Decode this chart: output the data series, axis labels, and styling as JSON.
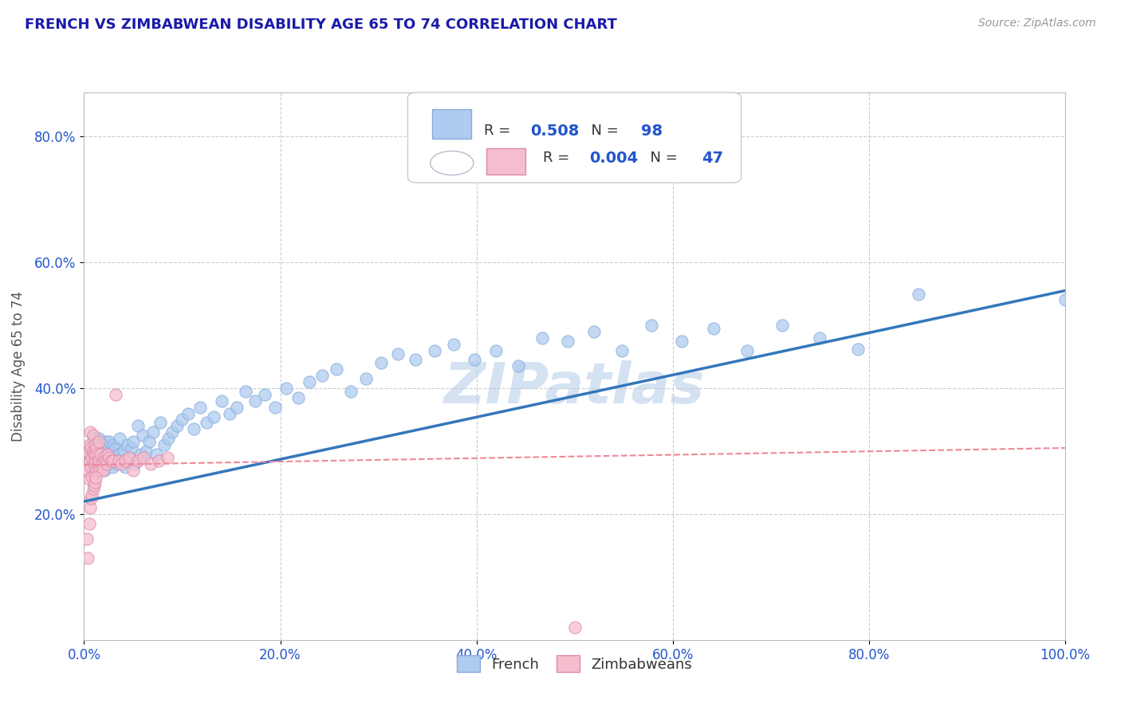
{
  "title": "FRENCH VS ZIMBABWEAN DISABILITY AGE 65 TO 74 CORRELATION CHART",
  "source_text": "Source: ZipAtlas.com",
  "xlabel": "",
  "ylabel": "Disability Age 65 to 74",
  "legend_french_label": "French",
  "legend_zimbabweans_label": "Zimbabweans",
  "french_R": "0.508",
  "french_N": "98",
  "zim_R": "0.004",
  "zim_N": "47",
  "title_color": "#1a1aaa",
  "axis_label_color": "#555555",
  "watermark_text": "ZIPatlas",
  "watermark_color": "#b8d0e8",
  "french_color": "#aeccf0",
  "french_edge_color": "#88aadd",
  "zim_color": "#f5bece",
  "zim_edge_color": "#dd88aa",
  "french_line_color": "#3377bb",
  "zim_line_color": "#ee8899",
  "legend_box_color": "#aeccf0",
  "legend_zim_box_color": "#f5bece",
  "legend_N_color": "#2255cc",
  "xlim": [
    0.0,
    1.0
  ],
  "ylim": [
    0.0,
    0.87
  ],
  "xtick_labels": [
    "0.0%",
    "20.0%",
    "40.0%",
    "60.0%",
    "80.0%",
    "100.0%"
  ],
  "ytick_labels": [
    "20.0%",
    "40.0%",
    "60.0%",
    "80.0%"
  ],
  "xtick_values": [
    0.0,
    0.2,
    0.4,
    0.6,
    0.8,
    1.0
  ],
  "ytick_values": [
    0.2,
    0.4,
    0.6,
    0.8
  ],
  "french_scatter_x": [
    0.005,
    0.007,
    0.008,
    0.009,
    0.01,
    0.01,
    0.011,
    0.012,
    0.012,
    0.013,
    0.013,
    0.014,
    0.015,
    0.015,
    0.016,
    0.017,
    0.018,
    0.018,
    0.019,
    0.02,
    0.02,
    0.021,
    0.022,
    0.022,
    0.023,
    0.024,
    0.025,
    0.026,
    0.027,
    0.028,
    0.029,
    0.03,
    0.031,
    0.032,
    0.034,
    0.035,
    0.036,
    0.038,
    0.04,
    0.042,
    0.044,
    0.046,
    0.048,
    0.05,
    0.052,
    0.055,
    0.058,
    0.06,
    0.063,
    0.066,
    0.07,
    0.074,
    0.078,
    0.082,
    0.086,
    0.09,
    0.095,
    0.1,
    0.106,
    0.112,
    0.118,
    0.125,
    0.132,
    0.14,
    0.148,
    0.156,
    0.165,
    0.174,
    0.184,
    0.195,
    0.206,
    0.218,
    0.23,
    0.243,
    0.257,
    0.272,
    0.287,
    0.303,
    0.32,
    0.338,
    0.357,
    0.377,
    0.398,
    0.42,
    0.443,
    0.467,
    0.493,
    0.52,
    0.548,
    0.578,
    0.609,
    0.642,
    0.676,
    0.712,
    0.75,
    0.789,
    0.851,
    1.0
  ],
  "french_scatter_y": [
    0.295,
    0.31,
    0.275,
    0.295,
    0.28,
    0.32,
    0.265,
    0.31,
    0.29,
    0.275,
    0.305,
    0.285,
    0.295,
    0.32,
    0.28,
    0.3,
    0.29,
    0.275,
    0.31,
    0.285,
    0.3,
    0.27,
    0.315,
    0.29,
    0.305,
    0.28,
    0.295,
    0.315,
    0.285,
    0.3,
    0.275,
    0.31,
    0.29,
    0.305,
    0.28,
    0.295,
    0.32,
    0.285,
    0.3,
    0.275,
    0.31,
    0.29,
    0.305,
    0.315,
    0.28,
    0.34,
    0.295,
    0.325,
    0.3,
    0.315,
    0.33,
    0.295,
    0.345,
    0.31,
    0.32,
    0.33,
    0.34,
    0.35,
    0.36,
    0.335,
    0.37,
    0.345,
    0.355,
    0.38,
    0.36,
    0.37,
    0.395,
    0.38,
    0.39,
    0.37,
    0.4,
    0.385,
    0.41,
    0.42,
    0.43,
    0.395,
    0.415,
    0.44,
    0.455,
    0.445,
    0.46,
    0.47,
    0.445,
    0.46,
    0.435,
    0.48,
    0.475,
    0.49,
    0.46,
    0.5,
    0.475,
    0.495,
    0.46,
    0.5,
    0.48,
    0.462,
    0.55,
    0.54
  ],
  "zim_scatter_x": [
    0.003,
    0.004,
    0.005,
    0.005,
    0.006,
    0.006,
    0.007,
    0.007,
    0.008,
    0.008,
    0.009,
    0.009,
    0.01,
    0.01,
    0.011,
    0.011,
    0.012,
    0.012,
    0.013,
    0.013,
    0.014,
    0.014,
    0.015,
    0.015,
    0.016,
    0.017,
    0.018,
    0.019,
    0.02,
    0.021,
    0.022,
    0.023,
    0.024,
    0.026,
    0.028,
    0.03,
    0.032,
    0.035,
    0.038,
    0.042,
    0.046,
    0.05,
    0.055,
    0.061,
    0.068,
    0.076,
    0.085
  ],
  "zim_scatter_y": [
    0.3,
    0.27,
    0.255,
    0.31,
    0.285,
    0.33,
    0.275,
    0.305,
    0.29,
    0.26,
    0.3,
    0.325,
    0.28,
    0.295,
    0.265,
    0.31,
    0.285,
    0.295,
    0.27,
    0.305,
    0.28,
    0.295,
    0.285,
    0.315,
    0.27,
    0.295,
    0.28,
    0.27,
    0.29,
    0.285,
    0.285,
    0.28,
    0.295,
    0.29,
    0.285,
    0.285,
    0.39,
    0.285,
    0.28,
    0.285,
    0.29,
    0.27,
    0.285,
    0.29,
    0.28,
    0.285,
    0.29
  ],
  "zim_extra_y": [
    0.16,
    0.13,
    0.185,
    0.21,
    0.225,
    0.23,
    0.24,
    0.245,
    0.25,
    0.258,
    0.02
  ],
  "zim_extra_x": [
    0.003,
    0.004,
    0.005,
    0.006,
    0.007,
    0.008,
    0.009,
    0.01,
    0.011,
    0.012,
    0.5
  ],
  "french_line_x": [
    0.0,
    1.0
  ],
  "french_line_y": [
    0.22,
    0.555
  ],
  "zim_line_x": [
    0.0,
    1.0
  ],
  "zim_line_y": [
    0.278,
    0.305
  ],
  "background_color": "#ffffff",
  "grid_color": "#cccccc",
  "grid_style": "--"
}
